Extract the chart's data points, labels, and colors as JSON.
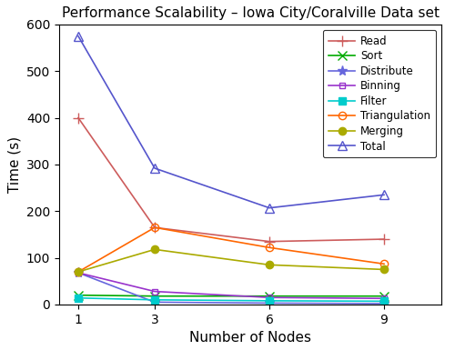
{
  "title": "Performance Scalability – Iowa City/Coralville Data set",
  "xlabel": "Number of Nodes",
  "ylabel": "Time (s)",
  "x": [
    1,
    3,
    6,
    9
  ],
  "series": {
    "Read": {
      "values": [
        400,
        165,
        135,
        140
      ],
      "color": "#CD5C5C",
      "marker": "+",
      "open": false,
      "markersize": 8
    },
    "Sort": {
      "values": [
        20,
        18,
        18,
        18
      ],
      "color": "#00AA00",
      "marker": "x",
      "open": false,
      "markersize": 7
    },
    "Distribute": {
      "values": [
        68,
        5,
        3,
        2
      ],
      "color": "#6666DD",
      "marker": "*",
      "open": false,
      "markersize": 8
    },
    "Binning": {
      "values": [
        68,
        28,
        15,
        13
      ],
      "color": "#9933CC",
      "marker": "s",
      "open": true,
      "markersize": 5
    },
    "Filter": {
      "values": [
        14,
        10,
        8,
        7
      ],
      "color": "#00CCCC",
      "marker": "s",
      "open": false,
      "markersize": 6
    },
    "Triangulation": {
      "values": [
        70,
        165,
        122,
        87
      ],
      "color": "#FF6600",
      "marker": "o",
      "open": true,
      "markersize": 6
    },
    "Merging": {
      "values": [
        70,
        118,
        85,
        75
      ],
      "color": "#AAAA00",
      "marker": "o",
      "open": false,
      "markersize": 6
    },
    "Total": {
      "values": [
        575,
        292,
        207,
        235
      ],
      "color": "#5555CC",
      "marker": "^",
      "open": true,
      "markersize": 7
    }
  },
  "ylim": [
    0,
    600
  ],
  "yticks": [
    0,
    100,
    200,
    300,
    400,
    500,
    600
  ],
  "xticks": [
    1,
    3,
    6,
    9
  ],
  "xlim": [
    0.5,
    10.5
  ],
  "figsize": [
    5.0,
    3.85
  ],
  "dpi": 100
}
